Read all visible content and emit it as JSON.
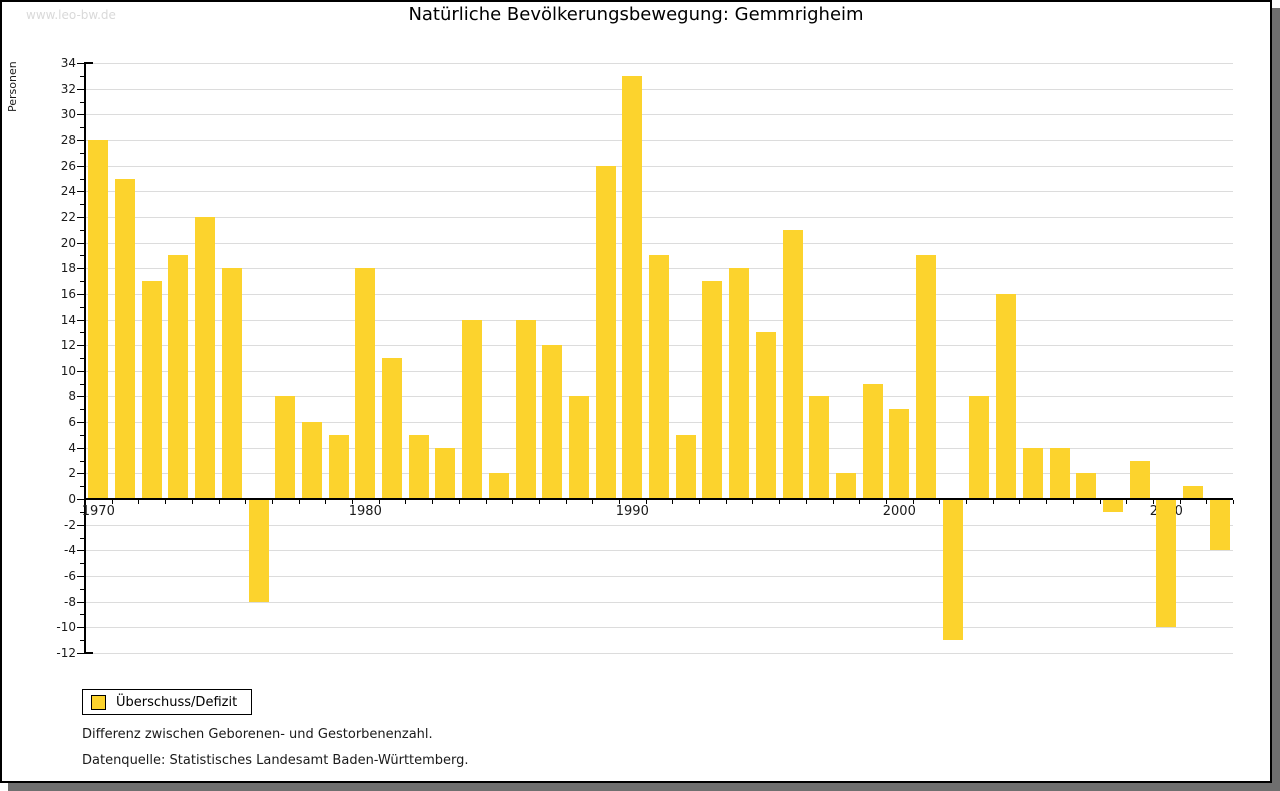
{
  "watermark": "www.leo-bw.de",
  "title": "Natürliche Bevölkerungsbewegung: Gemmrigheim",
  "y_axis_label": "Personen",
  "legend": {
    "label": "Überschuss/Defizit"
  },
  "footnotes": {
    "line1": "Differenz zwischen Geborenen- und Gestorbenenzahl.",
    "line2": "Datenquelle: Statistisches Landesamt Baden-Württemberg."
  },
  "colors": {
    "bar": "#fcd32d",
    "grid": "#dcdcdc",
    "axis": "#000000",
    "watermark": "#d9d9d9",
    "shadow": "#6f6f6f"
  },
  "chart_data": {
    "type": "bar",
    "title": "Natürliche Bevölkerungsbewegung: Gemmrigheim",
    "xlabel": "",
    "ylabel": "Personen",
    "legend_entries": [
      "Überschuss/Defizit"
    ],
    "legend_position": "bottom-left",
    "grid": true,
    "ylim": [
      -12,
      34
    ],
    "ytick_step": 2,
    "xtick_labels": [
      "1970",
      "1980",
      "1990",
      "2000",
      "2010"
    ],
    "x": [
      1970,
      1971,
      1972,
      1973,
      1974,
      1975,
      1976,
      1977,
      1978,
      1979,
      1980,
      1981,
      1982,
      1983,
      1984,
      1985,
      1986,
      1987,
      1988,
      1989,
      1990,
      1991,
      1992,
      1993,
      1994,
      1995,
      1996,
      1997,
      1998,
      1999,
      2000,
      2001,
      2002,
      2003,
      2004,
      2005,
      2006,
      2007,
      2008,
      2009,
      2010,
      2011,
      2012
    ],
    "series": [
      {
        "name": "Überschuss/Defizit",
        "values": [
          28,
          25,
          17,
          19,
          22,
          18,
          -8,
          8,
          6,
          5,
          18,
          11,
          5,
          4,
          14,
          2,
          14,
          12,
          8,
          26,
          33,
          19,
          5,
          17,
          18,
          13,
          21,
          8,
          2,
          9,
          7,
          19,
          -11,
          8,
          16,
          4,
          4,
          2,
          -1,
          3,
          -10,
          1,
          -4
        ]
      }
    ]
  }
}
